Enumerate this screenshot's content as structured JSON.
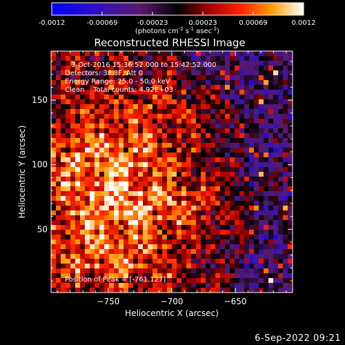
{
  "chart_data": {
    "type": "heatmap",
    "title": "Reconstructed RHESSI Image",
    "xlabel": "Heliocentric X (arcsec)",
    "ylabel": "Heliocentric Y (arcsec)",
    "xlim": [
      -795,
      -605
    ],
    "ylim": [
      1,
      188
    ],
    "xticks": [
      -750,
      -700,
      -650
    ],
    "yticks": [
      50,
      100,
      150
    ],
    "colorbar": {
      "range": [
        -0.0012,
        0.0012
      ],
      "ticks": [
        "-0.0012",
        "-0.00069",
        "-0.00023",
        "0.00023",
        "0.00069",
        "0.0012"
      ],
      "label_parts": [
        "(photons cm",
        "-2",
        " s",
        "-1",
        " asec",
        "-2",
        ")"
      ],
      "colormap": "blue-red-yellow-white"
    },
    "annotations": [
      "3-Oct-2016 15:36:52.000 to 15:42:52.000",
      "Detectors: 3F 8F, Att 0",
      "Energy Range: 25.0 - 50.0 keV",
      "Clean    Total counts: 4.92E+03"
    ],
    "peak_label": "Position of Peak = [-761,127]",
    "peak_position": [
      -761,
      127
    ]
  },
  "footer": {
    "date": "6-Sep-2022 09:21"
  }
}
